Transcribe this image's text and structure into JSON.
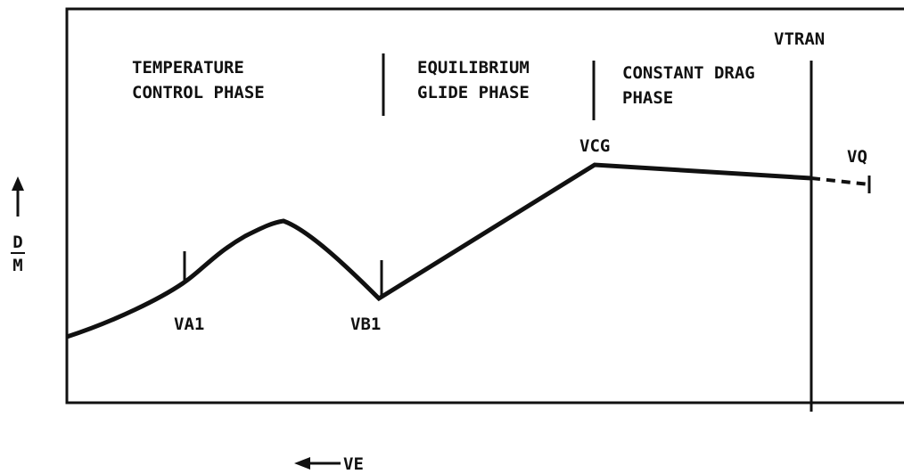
{
  "phases": [
    {
      "lines": [
        "TEMPERATURE",
        "CONTROL PHASE"
      ]
    },
    {
      "lines": [
        "EQUILIBRIUM",
        "GLIDE PHASE"
      ]
    },
    {
      "lines": [
        "CONSTANT DRAG",
        "PHASE"
      ]
    }
  ],
  "points": {
    "va1": "VA1",
    "vb1": "VB1",
    "vcg": "VCG",
    "vtran": "VTRAN",
    "vq": "VQ"
  },
  "y_axis": {
    "numerator": "D",
    "denominator": "M"
  },
  "x_axis": {
    "label": "VE"
  }
}
